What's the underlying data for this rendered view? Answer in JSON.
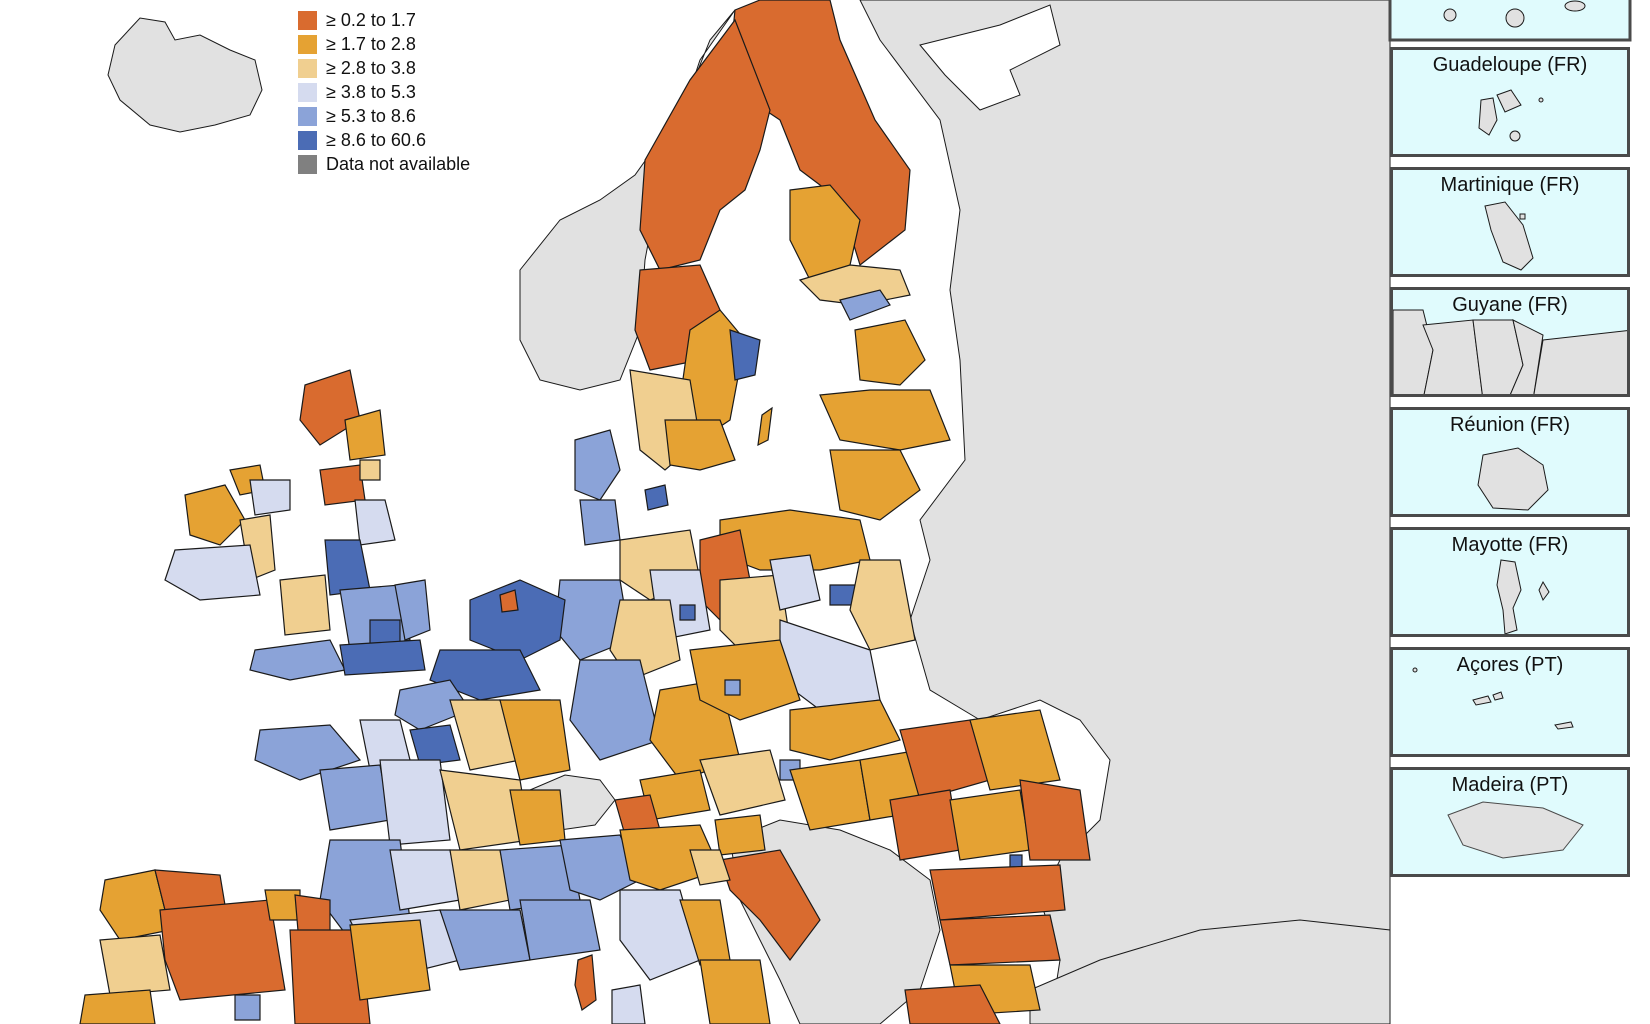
{
  "legend": {
    "items": [
      {
        "label": "≥ 0.2 to 1.7",
        "color": "#d96b2f"
      },
      {
        "label": "≥ 1.7 to 2.8",
        "color": "#e5a233"
      },
      {
        "label": "≥ 2.8 to 3.8",
        "color": "#f0cf90"
      },
      {
        "label": "≥ 3.8 to 5.3",
        "color": "#d5dbef"
      },
      {
        "label": "≥ 5.3 to 8.6",
        "color": "#8ba3d8"
      },
      {
        "label": "≥ 8.6 to 60.6",
        "color": "#4b6cb5"
      },
      {
        "label": "Data not available",
        "color": "#808080"
      }
    ]
  },
  "insets": [
    {
      "title": "Guadeloupe (FR)"
    },
    {
      "title": "Martinique (FR)"
    },
    {
      "title": "Guyane (FR)"
    },
    {
      "title": "Réunion (FR)"
    },
    {
      "title": "Mayotte (FR)"
    },
    {
      "title": "Açores (PT)"
    },
    {
      "title": "Madeira (PT)"
    }
  ],
  "colors": {
    "sea": "#ffffff",
    "non_eu_land": "#e1e1e1",
    "border": "#1a1a1a",
    "inset_bg": "#e0fbfd",
    "inset_frame": "#4a4a4a"
  }
}
